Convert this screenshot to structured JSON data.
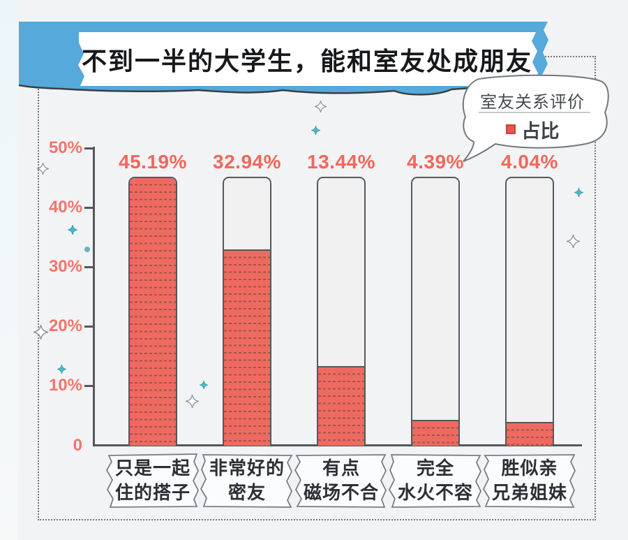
{
  "title": "不到一半的大学生，能和室友处成朋友",
  "legend": {
    "title": "室友关系评价",
    "series_label": "占比"
  },
  "y_axis": {
    "labels": [
      "50%",
      "40%",
      "30%",
      "20%",
      "10%",
      "0"
    ]
  },
  "chart_data": {
    "type": "bar",
    "title": "不到一半的大学生，能和室友处成朋友",
    "categories": [
      "只是一起住的搭子",
      "非常好的密友",
      "有点磁场不合",
      "完全水火不容",
      "胜似亲兄弟姐妹"
    ],
    "values": [
      45.19,
      32.94,
      13.44,
      4.39,
      4.04
    ],
    "value_labels": [
      "45.19%",
      "32.94%",
      "13.44%",
      "4.39%",
      "4.04%"
    ],
    "xlabel": "",
    "ylabel": "",
    "ylim": [
      0,
      50
    ],
    "yticks": [
      "50%",
      "40%",
      "30%",
      "20%",
      "10%",
      "0"
    ],
    "grid": false,
    "legend_position": "top-right",
    "legend": {
      "title": "室友关系评价",
      "label": "占比"
    }
  },
  "categories_lines": [
    [
      "只是一起",
      "住的搭子"
    ],
    [
      "非常好的",
      "密友"
    ],
    [
      "有点",
      "磁场不合"
    ],
    [
      "完全",
      "水火不容"
    ],
    [
      "胜似亲",
      "兄弟姐妹"
    ]
  ],
  "colors": {
    "banner_blue": "#55a9db",
    "bar_red": "#ee6a60",
    "bar_dash": "#a3544c",
    "label_red": "#f1675a",
    "axis_gray": "#54575b",
    "legend_marker_red": "#e5584b",
    "sparkle_teal": "#4eb6c6",
    "background": "#f2f3f4"
  }
}
